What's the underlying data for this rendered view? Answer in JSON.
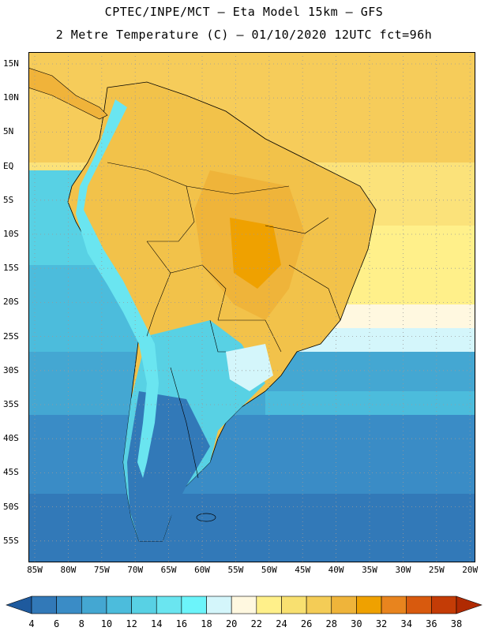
{
  "header": {
    "line1": "CPTEC/INPE/MCT –  Eta Model 15km – GFS",
    "line2": "2 Metre Temperature (C) – 01/10/2020 12UTC fct=96h"
  },
  "map": {
    "lat_labels": [
      "15N",
      "10N",
      "5N",
      "EQ",
      "5S",
      "10S",
      "15S",
      "20S",
      "25S",
      "30S",
      "35S",
      "40S",
      "45S",
      "50S",
      "55S"
    ],
    "lon_labels": [
      "85W",
      "80W",
      "75W",
      "70W",
      "65W",
      "60W",
      "55W",
      "50W",
      "45W",
      "40W",
      "35W",
      "30W",
      "25W",
      "20W"
    ],
    "gridlines": "dotted"
  },
  "colorbar": {
    "labels": [
      "4",
      "6",
      "8",
      "10",
      "12",
      "14",
      "16",
      "18",
      "20",
      "22",
      "24",
      "26",
      "28",
      "30",
      "32",
      "34",
      "36",
      "38"
    ],
    "colors": [
      "#1e5a9e",
      "#3279b8",
      "#3a8cc6",
      "#44a7d2",
      "#4cbcdc",
      "#58d1e4",
      "#6ae5f0",
      "#6cf4fa",
      "#d4f6fb",
      "#fff8e0",
      "#fff08a",
      "#f8e070",
      "#f4cc56",
      "#efb43a",
      "#efa100",
      "#e8841e",
      "#d85a0e",
      "#c43c06",
      "#b02a02"
    ]
  },
  "legend_colors": {
    "ocean_tropical": "#fbe27a",
    "land_hot": "#f0b33a",
    "ocean_cold": "#3a8cc6",
    "andes": "#6ae5f0"
  }
}
